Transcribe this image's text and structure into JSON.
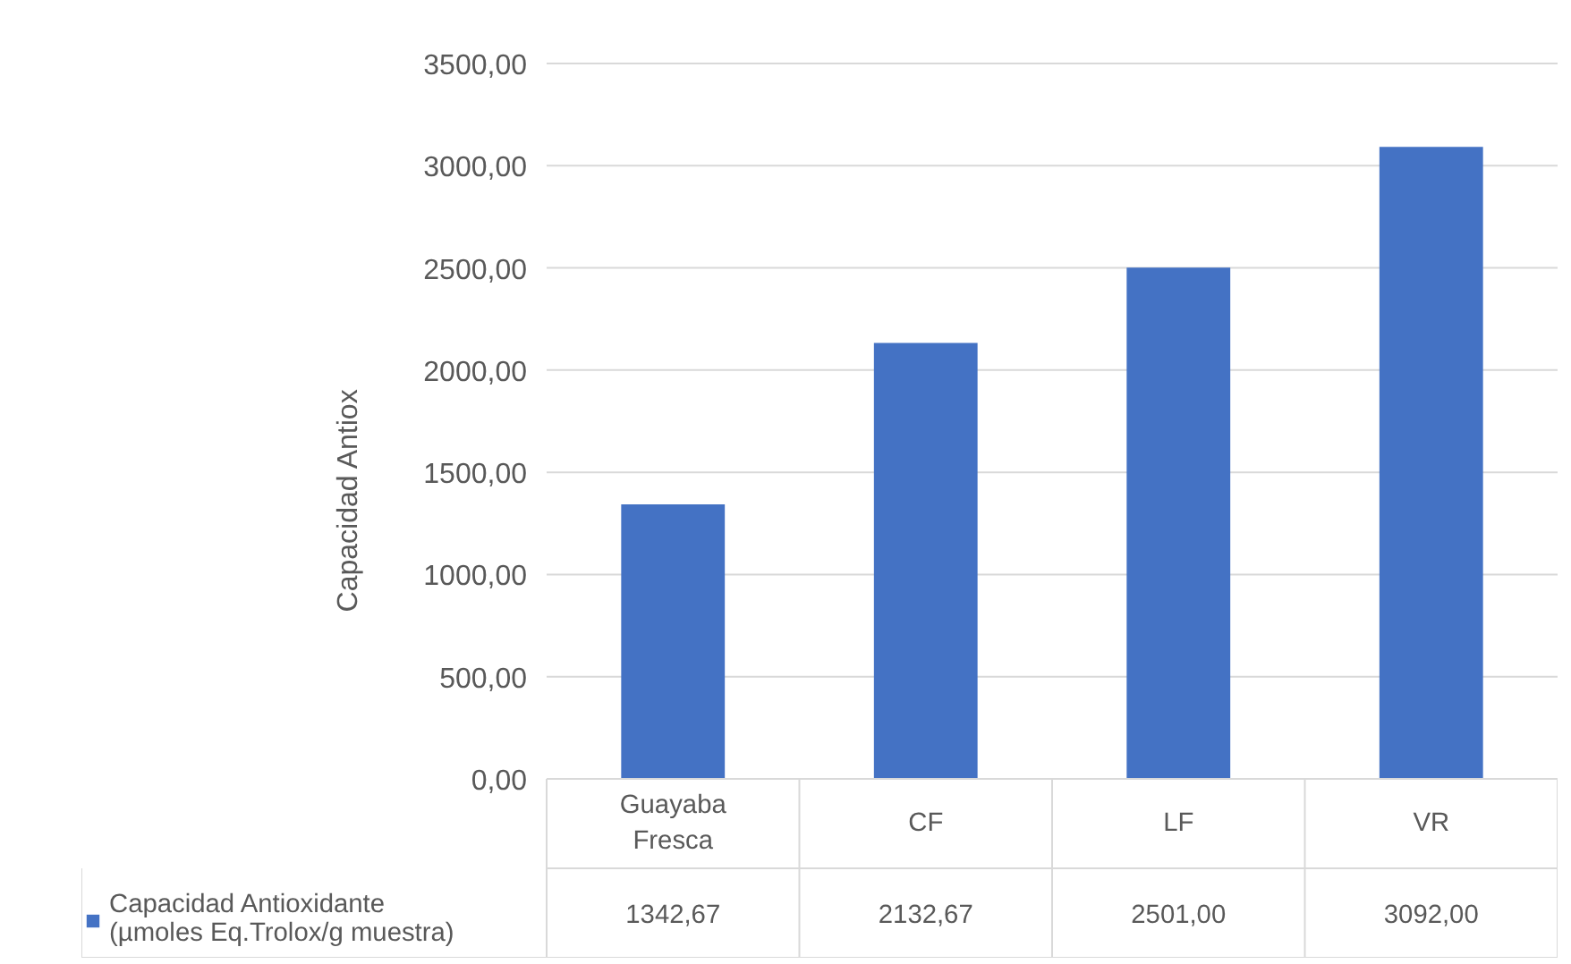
{
  "chart_data": {
    "type": "bar",
    "ylabel": "Capacidad Antiox",
    "categories": [
      "Guayaba Fresca",
      "CF",
      "LF",
      "VR"
    ],
    "series": [
      {
        "name": "Capacidad Antioxidante (µmoles Eq.Trolox/g muestra)",
        "color": "#4472c4",
        "values": [
          1342.67,
          2132.67,
          2501.0,
          3092.0
        ],
        "value_labels": [
          "1342,67",
          "2132,67",
          "2501,00",
          "3092,00"
        ]
      }
    ],
    "ylim": [
      0,
      3500
    ],
    "yticks": [
      {
        "value": 0,
        "label": "0,00"
      },
      {
        "value": 500,
        "label": "500,00"
      },
      {
        "value": 1000,
        "label": "1000,00"
      },
      {
        "value": 1500,
        "label": "1500,00"
      },
      {
        "value": 2000,
        "label": "2000,00"
      },
      {
        "value": 2500,
        "label": "2500,00"
      },
      {
        "value": 3000,
        "label": "3000,00"
      },
      {
        "value": 3500,
        "label": "3500,00"
      }
    ],
    "grid": "y",
    "legend": "bottom"
  }
}
